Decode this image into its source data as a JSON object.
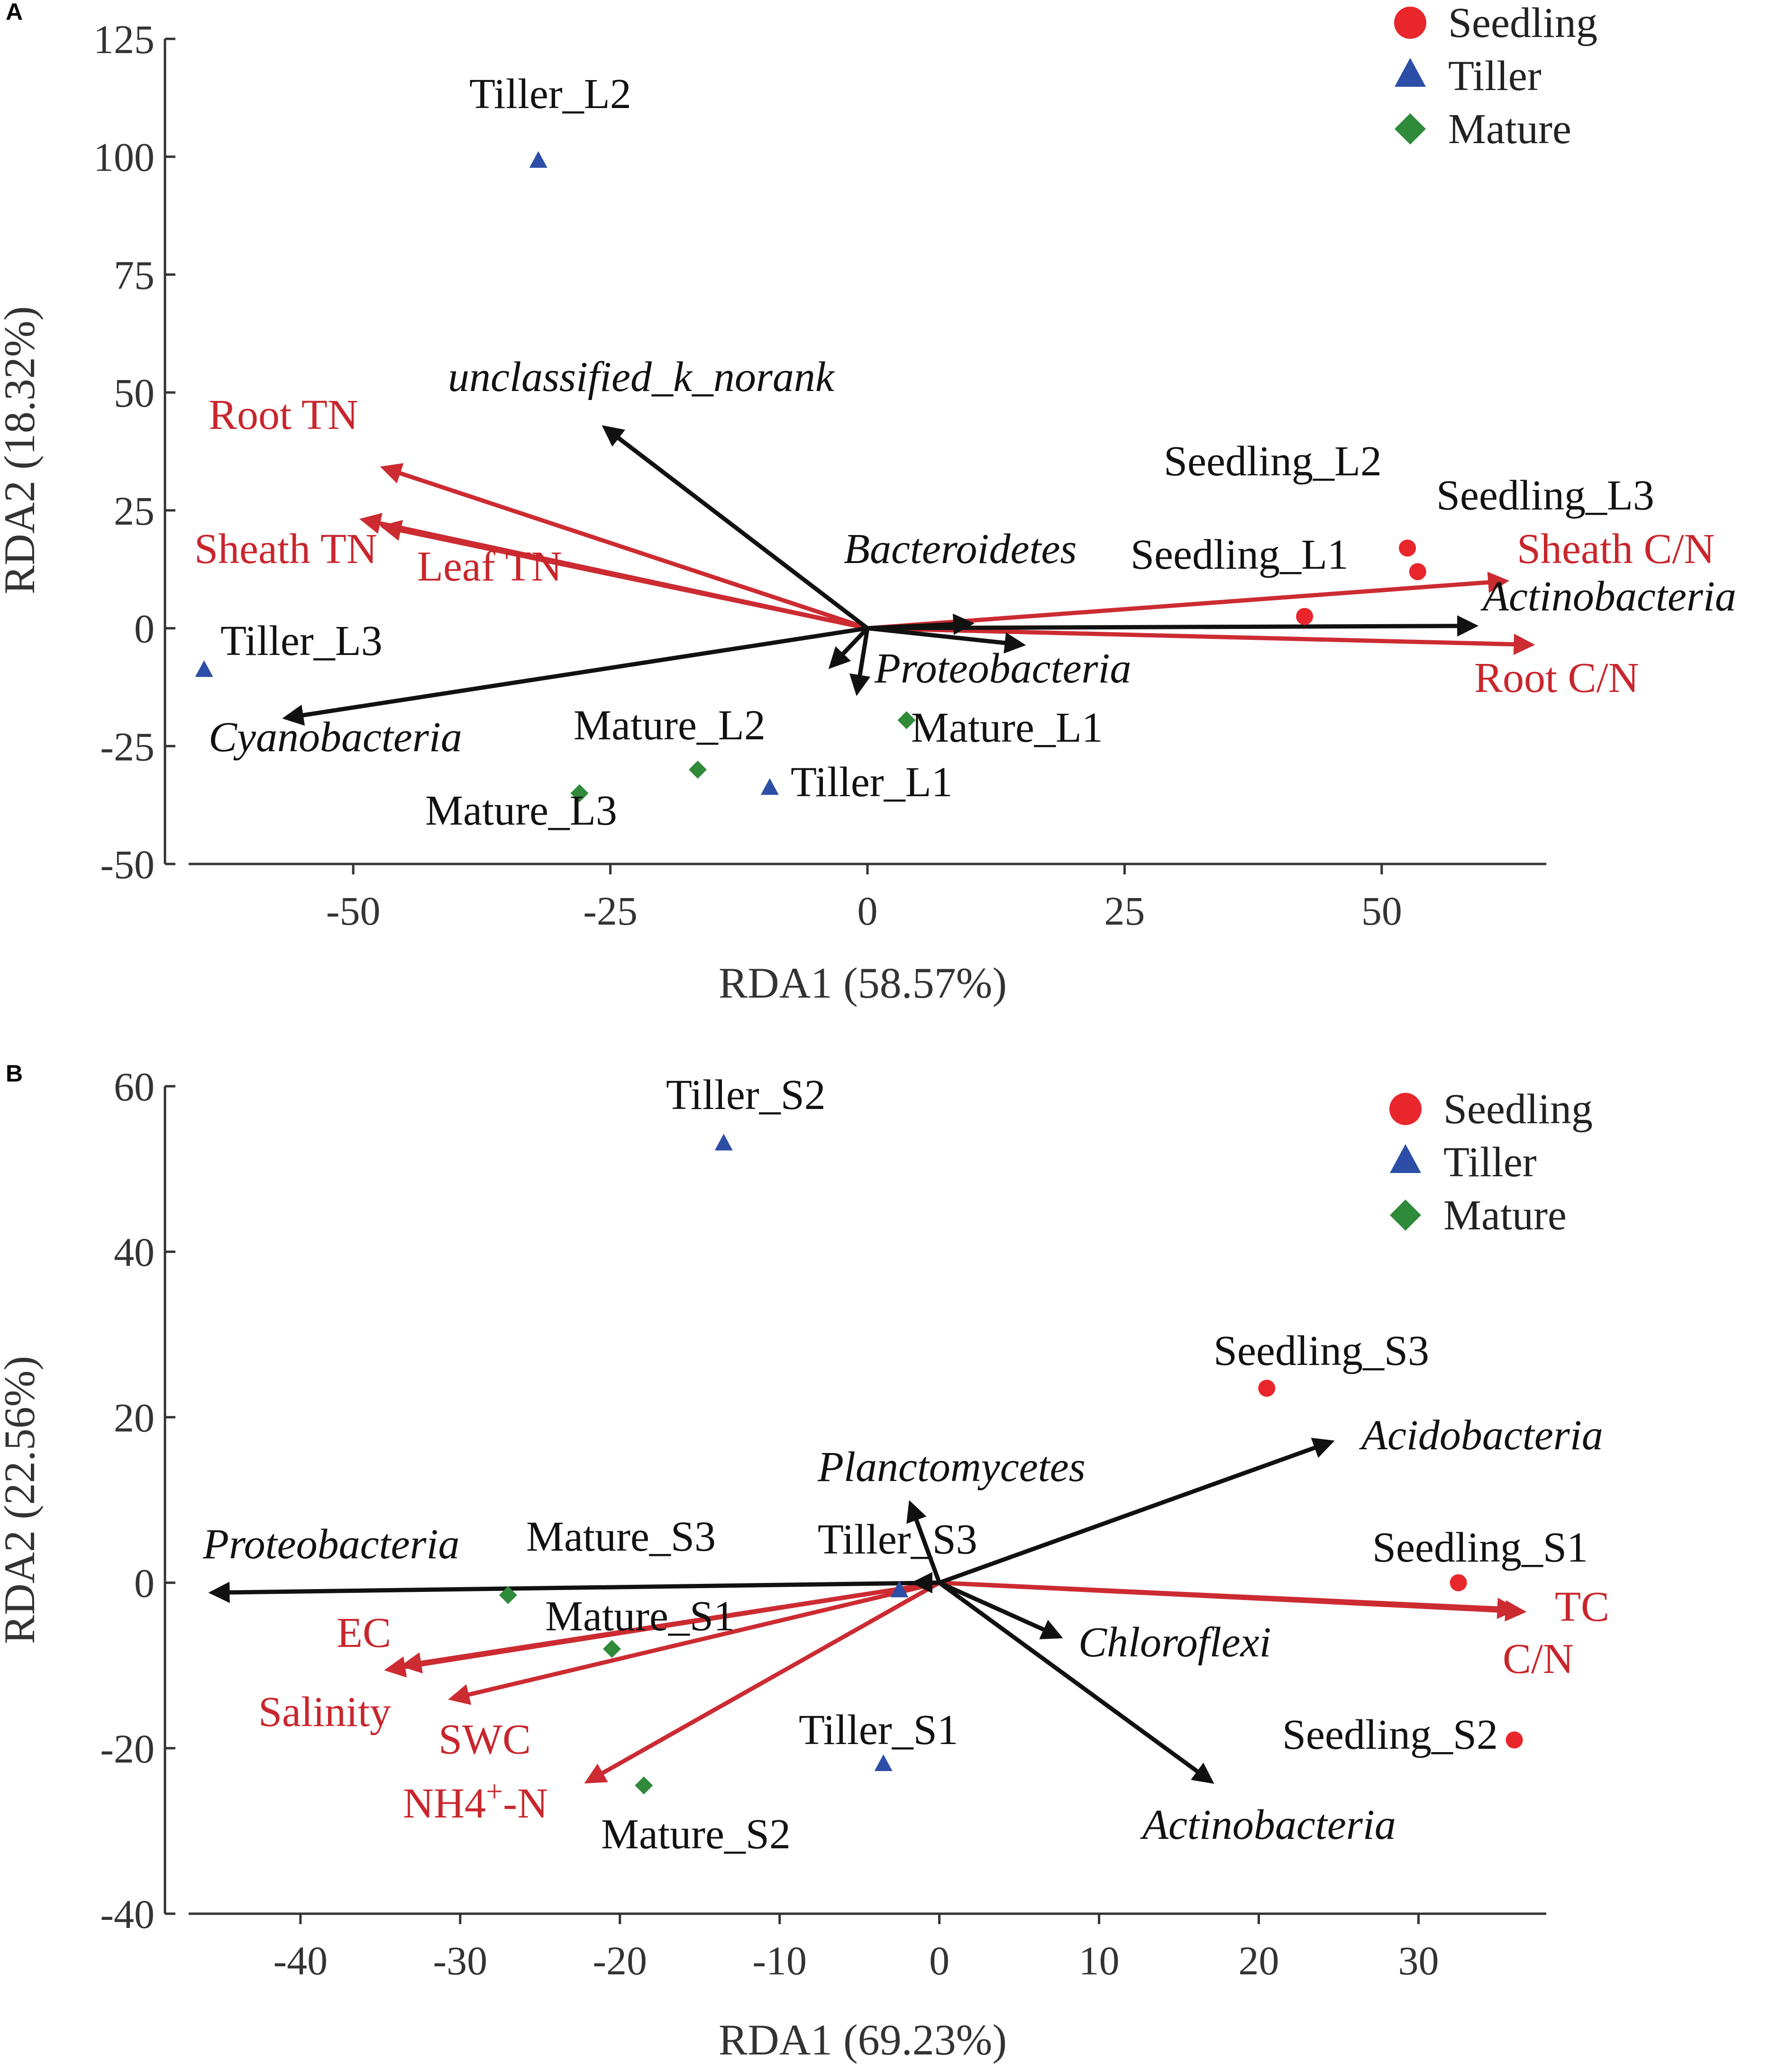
{
  "chart_data": [
    {
      "panel": "A",
      "type": "scatter",
      "title": "",
      "xlabel": "RDA1 (58.57%)",
      "ylabel": "RDA2 (18.32%)",
      "xlim": [
        -66,
        66
      ],
      "ylim": [
        -50,
        125
      ],
      "xticks": [
        -50,
        -25,
        0,
        25,
        50
      ],
      "yticks": [
        125,
        100,
        75,
        50,
        25,
        0,
        -25,
        -50
      ],
      "legend": [
        {
          "name": "Seedling",
          "color": "#e8262b",
          "shape": "circle"
        },
        {
          "name": "Tiller",
          "color": "#2c4ea6",
          "shape": "triangle"
        },
        {
          "name": "Mature",
          "color": "#2f8a3a",
          "shape": "diamond"
        }
      ],
      "points": [
        {
          "label": "Tiller_L2",
          "group": "Tiller",
          "x": -32,
          "y": 99
        },
        {
          "label": "Tiller_L3",
          "group": "Tiller",
          "x": -64.5,
          "y": -9
        },
        {
          "label": "Tiller_L1",
          "group": "Tiller",
          "x": -9.5,
          "y": -34
        },
        {
          "label": "Mature_L2",
          "group": "Mature",
          "x": -16.5,
          "y": -30
        },
        {
          "label": "Mature_L3",
          "group": "Mature",
          "x": -28,
          "y": -35
        },
        {
          "label": "Mature_L1",
          "group": "Mature",
          "x": 3.8,
          "y": -19.5
        },
        {
          "label": "Seedling_L2",
          "group": "Seedling",
          "x": 52.5,
          "y": 17
        },
        {
          "label": "Seedling_L3",
          "group": "Seedling",
          "x": 53.5,
          "y": 12
        },
        {
          "label": "Seedling_L1",
          "group": "Seedling",
          "x": 42.5,
          "y": 2.5
        }
      ],
      "species_arrows": [
        {
          "label": "unclassified_k_norank",
          "x": -25.5,
          "y": 42.5
        },
        {
          "label": "Bacteroidetes",
          "x": 10,
          "y": 1
        },
        {
          "label": "Actinobacteria",
          "x": 59,
          "y": 0.5
        },
        {
          "label": "Proteobacteria",
          "x": -1,
          "y": -13.5
        },
        {
          "label": "Cyanobacteria",
          "x": -56.5,
          "y": -19
        },
        {
          "label": "",
          "x": 15,
          "y": -3.5
        },
        {
          "label": "",
          "x": -3.5,
          "y": -8
        }
      ],
      "env_arrows": [
        {
          "label": "Root TN",
          "x": -47,
          "y": 34
        },
        {
          "label": "Sheath TN",
          "x": -49,
          "y": 23
        },
        {
          "label": "Leaf TN",
          "x": -47,
          "y": 21.5
        },
        {
          "label": "Sheath C/N",
          "x": 62,
          "y": 10
        },
        {
          "label": "Root C/N",
          "x": 64.5,
          "y": -3.5
        }
      ]
    },
    {
      "panel": "B",
      "type": "scatter",
      "title": "",
      "xlabel": "RDA1 (69.23%)",
      "ylabel": "RDA2 (22.56%)",
      "xlim": [
        -47,
        38
      ],
      "ylim": [
        -40,
        60
      ],
      "xticks": [
        -40,
        -30,
        -20,
        -10,
        0,
        10,
        20,
        30
      ],
      "yticks": [
        60,
        40,
        20,
        0,
        -20,
        -40
      ],
      "legend": [
        {
          "name": "Seedling",
          "color": "#e8262b",
          "shape": "circle"
        },
        {
          "name": "Tiller",
          "color": "#2c4ea6",
          "shape": "triangle"
        },
        {
          "name": "Mature",
          "color": "#2f8a3a",
          "shape": "diamond"
        }
      ],
      "points": [
        {
          "label": "Tiller_S2",
          "group": "Tiller",
          "x": -13.5,
          "y": 53
        },
        {
          "label": "Tiller_S3",
          "group": "Tiller",
          "x": -2.5,
          "y": -1
        },
        {
          "label": "Tiller_S1",
          "group": "Tiller",
          "x": -3.5,
          "y": -22
        },
        {
          "label": "Mature_S3",
          "group": "Mature",
          "x": -27,
          "y": -1.5
        },
        {
          "label": "Mature_S1",
          "group": "Mature",
          "x": -20.5,
          "y": -8
        },
        {
          "label": "Mature_S2",
          "group": "Mature",
          "x": -18.5,
          "y": -24.5
        },
        {
          "label": "Seedling_S3",
          "group": "Seedling",
          "x": 20.5,
          "y": 23.5
        },
        {
          "label": "Seedling_S1",
          "group": "Seedling",
          "x": 32.5,
          "y": 0
        },
        {
          "label": "Seedling_S2",
          "group": "Seedling",
          "x": 36,
          "y": -19
        }
      ],
      "species_arrows": [
        {
          "label": "Acidobacteria",
          "x": 24.5,
          "y": 17
        },
        {
          "label": "Planctomycetes",
          "x": -1.8,
          "y": 9.5
        },
        {
          "label": "Proteobacteria",
          "x": -45.5,
          "y": -1.2
        },
        {
          "label": "Chloroflexi",
          "x": 7.5,
          "y": -6.5
        },
        {
          "label": "Actinobacteria",
          "x": 17,
          "y": -24
        },
        {
          "label": "",
          "x": -1.5,
          "y": 0
        }
      ],
      "env_arrows": [
        {
          "label": "TC",
          "x": 36.5,
          "y": -3.5
        },
        {
          "label": "C/N",
          "x": 36,
          "y": -3.2
        },
        {
          "label": "EC",
          "x": -34.5,
          "y": -10.5
        },
        {
          "label": "Salinity",
          "x": -33.5,
          "y": -10
        },
        {
          "label": "SWC",
          "x": -30.5,
          "y": -14
        },
        {
          "label": "NH4",
          "x": -22,
          "y": -24
        }
      ],
      "nh4_superscript": "+",
      "nh4_suffix": "-N"
    }
  ]
}
